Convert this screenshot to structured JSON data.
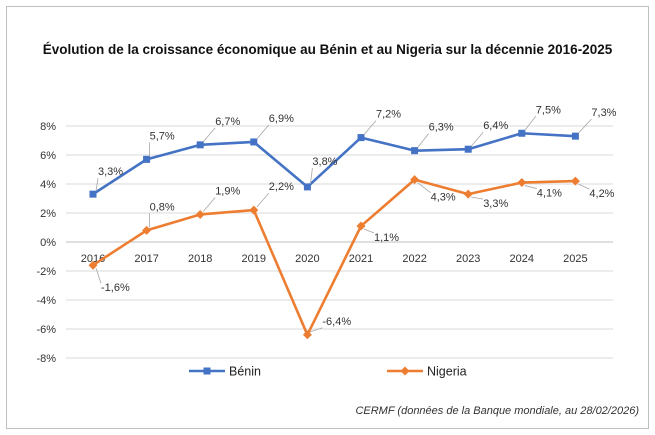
{
  "chart_data": {
    "type": "line",
    "title": "Évolution de la croissance économique au Bénin et au Nigeria sur la décennie 2016-2025",
    "source": "CERMF (données de la Banque mondiale, au 28/02/2026)",
    "categories": [
      "2016",
      "2017",
      "2018",
      "2019",
      "2020",
      "2021",
      "2022",
      "2023",
      "2024",
      "2025"
    ],
    "ylim": [
      -8,
      8
    ],
    "yticks": [
      8,
      6,
      4,
      2,
      0,
      -2,
      -4,
      -6,
      -8
    ],
    "ytick_labels": [
      "8%",
      "6%",
      "4%",
      "2%",
      "0%",
      "-2%",
      "-4%",
      "-6%",
      "-8%"
    ],
    "legend_position": "bottom",
    "series": [
      {
        "name": "Bénin",
        "color": "#4472C4",
        "marker": "square",
        "values": [
          3.3,
          5.7,
          6.7,
          6.9,
          3.8,
          7.2,
          6.3,
          6.4,
          7.5,
          7.3
        ],
        "labels": [
          "3,3%",
          "5,7%",
          "6,7%",
          "6,9%",
          "3,8%",
          "7,2%",
          "6,3%",
          "6,4%",
          "7,5%",
          "7,3%"
        ]
      },
      {
        "name": "Nigeria",
        "color": "#ED7D31",
        "marker": "diamond",
        "values": [
          -1.6,
          0.8,
          1.9,
          2.2,
          -6.4,
          1.1,
          4.3,
          3.3,
          4.1,
          4.2
        ],
        "labels": [
          "-1,6%",
          "0,8%",
          "1,9%",
          "2,2%",
          "-6,4%",
          "1,1%",
          "4,3%",
          "3,3%",
          "4,1%",
          "4,2%"
        ]
      }
    ]
  }
}
